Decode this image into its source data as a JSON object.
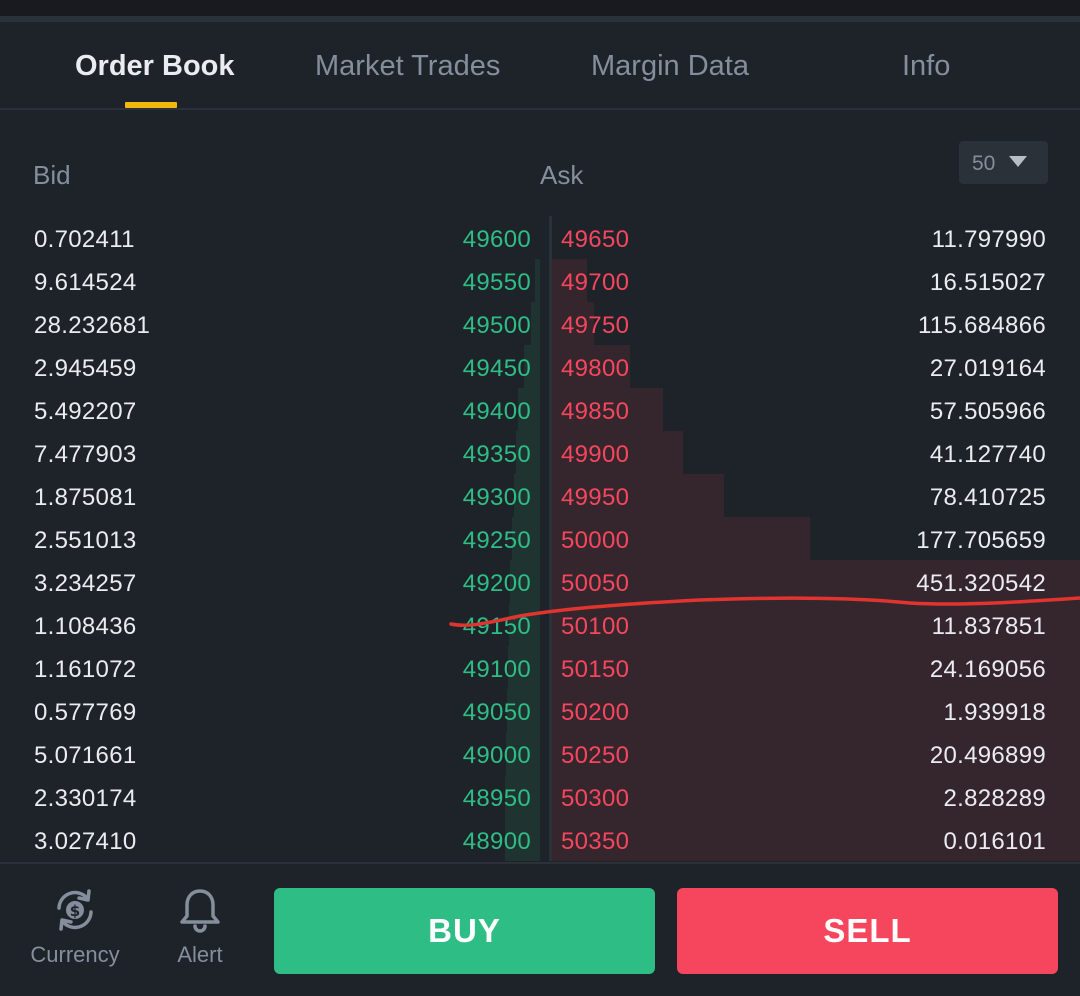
{
  "tabs": [
    {
      "label": "Order Book",
      "active": true
    },
    {
      "label": "Market Trades",
      "active": false
    },
    {
      "label": "Margin Data",
      "active": false
    },
    {
      "label": "Info",
      "active": false
    }
  ],
  "book": {
    "bid_header": "Bid",
    "ask_header": "Ask",
    "depth_value": "50",
    "rows": [
      {
        "bid_qty": "0.702411",
        "bid_price": "49600",
        "ask_price": "49650",
        "ask_qty": "11.797990"
      },
      {
        "bid_qty": "9.614524",
        "bid_price": "49550",
        "ask_price": "49700",
        "ask_qty": "16.515027"
      },
      {
        "bid_qty": "28.232681",
        "bid_price": "49500",
        "ask_price": "49750",
        "ask_qty": "115.684866"
      },
      {
        "bid_qty": "2.945459",
        "bid_price": "49450",
        "ask_price": "49800",
        "ask_qty": "27.019164"
      },
      {
        "bid_qty": "5.492207",
        "bid_price": "49400",
        "ask_price": "49850",
        "ask_qty": "57.505966"
      },
      {
        "bid_qty": "7.477903",
        "bid_price": "49350",
        "ask_price": "49900",
        "ask_qty": "41.127740"
      },
      {
        "bid_qty": "1.875081",
        "bid_price": "49300",
        "ask_price": "49950",
        "ask_qty": "78.410725"
      },
      {
        "bid_qty": "2.551013",
        "bid_price": "49250",
        "ask_price": "50000",
        "ask_qty": "177.705659"
      },
      {
        "bid_qty": "3.234257",
        "bid_price": "49200",
        "ask_price": "50050",
        "ask_qty": "451.320542"
      },
      {
        "bid_qty": "1.108436",
        "bid_price": "49150",
        "ask_price": "50100",
        "ask_qty": "11.837851"
      },
      {
        "bid_qty": "1.161072",
        "bid_price": "49100",
        "ask_price": "50150",
        "ask_qty": "24.169056"
      },
      {
        "bid_qty": "0.577769",
        "bid_price": "49050",
        "ask_price": "50200",
        "ask_qty": "1.939918"
      },
      {
        "bid_qty": "5.071661",
        "bid_price": "49000",
        "ask_price": "50250",
        "ask_qty": "20.496899"
      },
      {
        "bid_qty": "2.330174",
        "bid_price": "48950",
        "ask_price": "50300",
        "ask_qty": "2.828289"
      },
      {
        "bid_qty": "3.027410",
        "bid_price": "48900",
        "ask_price": "50350",
        "ask_qty": "0.016101"
      }
    ]
  },
  "footer": {
    "currency_label": "Currency",
    "alert_label": "Alert",
    "buy_label": "BUY",
    "sell_label": "SELL"
  },
  "colors": {
    "bid": "#2ebd85",
    "ask": "#f6465d",
    "accent": "#f0b90b",
    "background": "#1e2329",
    "annotation": "#e0342f"
  },
  "icons": {
    "currency": "currency-exchange-icon",
    "alert": "bell-icon",
    "depth_dropdown": "caret-down-icon"
  }
}
